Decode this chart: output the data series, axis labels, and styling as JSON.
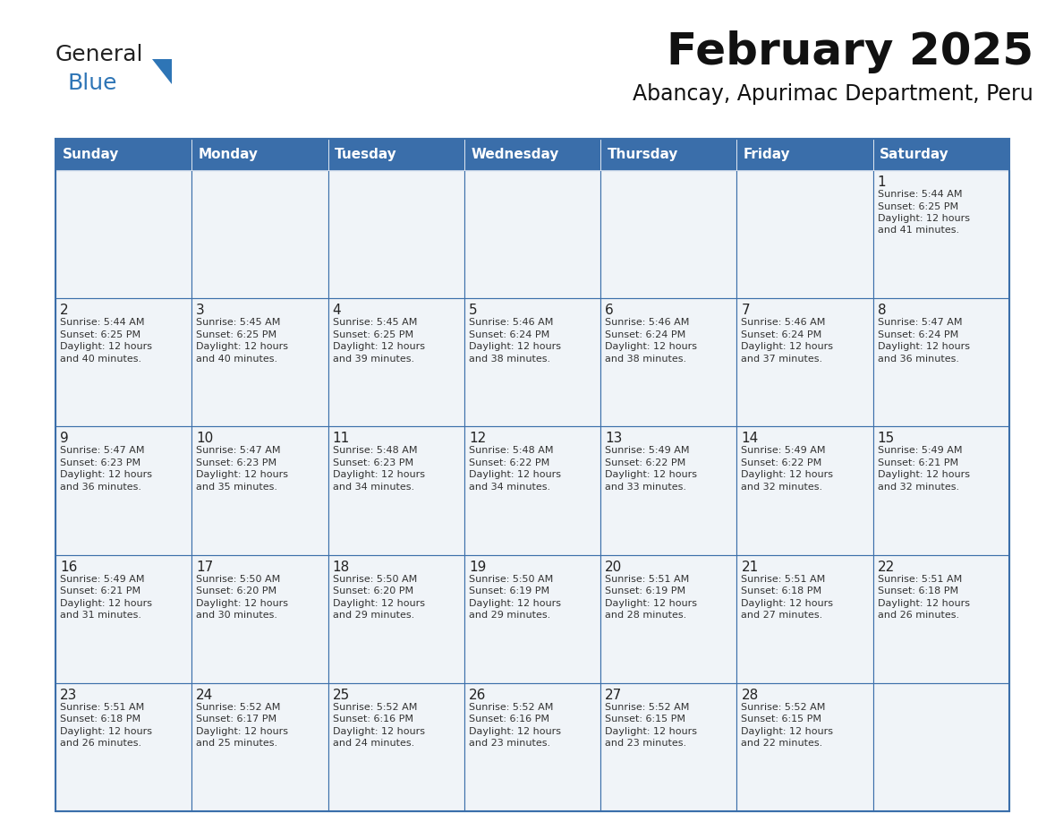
{
  "title": "February 2025",
  "subtitle": "Abancay, Apurimac Department, Peru",
  "days_of_week": [
    "Sunday",
    "Monday",
    "Tuesday",
    "Wednesday",
    "Thursday",
    "Friday",
    "Saturday"
  ],
  "header_bg_color": "#3A6EAA",
  "header_text_color": "#FFFFFF",
  "cell_bg_even": "#F0F4F8",
  "cell_bg_odd": "#FFFFFF",
  "grid_line_color": "#3A6EAA",
  "day_num_color": "#222222",
  "detail_text_color": "#333333",
  "title_color": "#111111",
  "subtitle_color": "#111111",
  "logo_general_color": "#222222",
  "logo_blue_color": "#2E75B6",
  "logo_triangle_color": "#2E75B6",
  "calendar_data": [
    [
      null,
      null,
      null,
      null,
      null,
      null,
      {
        "day": 1,
        "sunrise": "5:44 AM",
        "sunset": "6:25 PM",
        "daylight_l1": "12 hours",
        "daylight_l2": "and 41 minutes."
      }
    ],
    [
      {
        "day": 2,
        "sunrise": "5:44 AM",
        "sunset": "6:25 PM",
        "daylight_l1": "12 hours",
        "daylight_l2": "and 40 minutes."
      },
      {
        "day": 3,
        "sunrise": "5:45 AM",
        "sunset": "6:25 PM",
        "daylight_l1": "12 hours",
        "daylight_l2": "and 40 minutes."
      },
      {
        "day": 4,
        "sunrise": "5:45 AM",
        "sunset": "6:25 PM",
        "daylight_l1": "12 hours",
        "daylight_l2": "and 39 minutes."
      },
      {
        "day": 5,
        "sunrise": "5:46 AM",
        "sunset": "6:24 PM",
        "daylight_l1": "12 hours",
        "daylight_l2": "and 38 minutes."
      },
      {
        "day": 6,
        "sunrise": "5:46 AM",
        "sunset": "6:24 PM",
        "daylight_l1": "12 hours",
        "daylight_l2": "and 38 minutes."
      },
      {
        "day": 7,
        "sunrise": "5:46 AM",
        "sunset": "6:24 PM",
        "daylight_l1": "12 hours",
        "daylight_l2": "and 37 minutes."
      },
      {
        "day": 8,
        "sunrise": "5:47 AM",
        "sunset": "6:24 PM",
        "daylight_l1": "12 hours",
        "daylight_l2": "and 36 minutes."
      }
    ],
    [
      {
        "day": 9,
        "sunrise": "5:47 AM",
        "sunset": "6:23 PM",
        "daylight_l1": "12 hours",
        "daylight_l2": "and 36 minutes."
      },
      {
        "day": 10,
        "sunrise": "5:47 AM",
        "sunset": "6:23 PM",
        "daylight_l1": "12 hours",
        "daylight_l2": "and 35 minutes."
      },
      {
        "day": 11,
        "sunrise": "5:48 AM",
        "sunset": "6:23 PM",
        "daylight_l1": "12 hours",
        "daylight_l2": "and 34 minutes."
      },
      {
        "day": 12,
        "sunrise": "5:48 AM",
        "sunset": "6:22 PM",
        "daylight_l1": "12 hours",
        "daylight_l2": "and 34 minutes."
      },
      {
        "day": 13,
        "sunrise": "5:49 AM",
        "sunset": "6:22 PM",
        "daylight_l1": "12 hours",
        "daylight_l2": "and 33 minutes."
      },
      {
        "day": 14,
        "sunrise": "5:49 AM",
        "sunset": "6:22 PM",
        "daylight_l1": "12 hours",
        "daylight_l2": "and 32 minutes."
      },
      {
        "day": 15,
        "sunrise": "5:49 AM",
        "sunset": "6:21 PM",
        "daylight_l1": "12 hours",
        "daylight_l2": "and 32 minutes."
      }
    ],
    [
      {
        "day": 16,
        "sunrise": "5:49 AM",
        "sunset": "6:21 PM",
        "daylight_l1": "12 hours",
        "daylight_l2": "and 31 minutes."
      },
      {
        "day": 17,
        "sunrise": "5:50 AM",
        "sunset": "6:20 PM",
        "daylight_l1": "12 hours",
        "daylight_l2": "and 30 minutes."
      },
      {
        "day": 18,
        "sunrise": "5:50 AM",
        "sunset": "6:20 PM",
        "daylight_l1": "12 hours",
        "daylight_l2": "and 29 minutes."
      },
      {
        "day": 19,
        "sunrise": "5:50 AM",
        "sunset": "6:19 PM",
        "daylight_l1": "12 hours",
        "daylight_l2": "and 29 minutes."
      },
      {
        "day": 20,
        "sunrise": "5:51 AM",
        "sunset": "6:19 PM",
        "daylight_l1": "12 hours",
        "daylight_l2": "and 28 minutes."
      },
      {
        "day": 21,
        "sunrise": "5:51 AM",
        "sunset": "6:18 PM",
        "daylight_l1": "12 hours",
        "daylight_l2": "and 27 minutes."
      },
      {
        "day": 22,
        "sunrise": "5:51 AM",
        "sunset": "6:18 PM",
        "daylight_l1": "12 hours",
        "daylight_l2": "and 26 minutes."
      }
    ],
    [
      {
        "day": 23,
        "sunrise": "5:51 AM",
        "sunset": "6:18 PM",
        "daylight_l1": "12 hours",
        "daylight_l2": "and 26 minutes."
      },
      {
        "day": 24,
        "sunrise": "5:52 AM",
        "sunset": "6:17 PM",
        "daylight_l1": "12 hours",
        "daylight_l2": "and 25 minutes."
      },
      {
        "day": 25,
        "sunrise": "5:52 AM",
        "sunset": "6:16 PM",
        "daylight_l1": "12 hours",
        "daylight_l2": "and 24 minutes."
      },
      {
        "day": 26,
        "sunrise": "5:52 AM",
        "sunset": "6:16 PM",
        "daylight_l1": "12 hours",
        "daylight_l2": "and 23 minutes."
      },
      {
        "day": 27,
        "sunrise": "5:52 AM",
        "sunset": "6:15 PM",
        "daylight_l1": "12 hours",
        "daylight_l2": "and 23 minutes."
      },
      {
        "day": 28,
        "sunrise": "5:52 AM",
        "sunset": "6:15 PM",
        "daylight_l1": "12 hours",
        "daylight_l2": "and 22 minutes."
      },
      null
    ]
  ]
}
